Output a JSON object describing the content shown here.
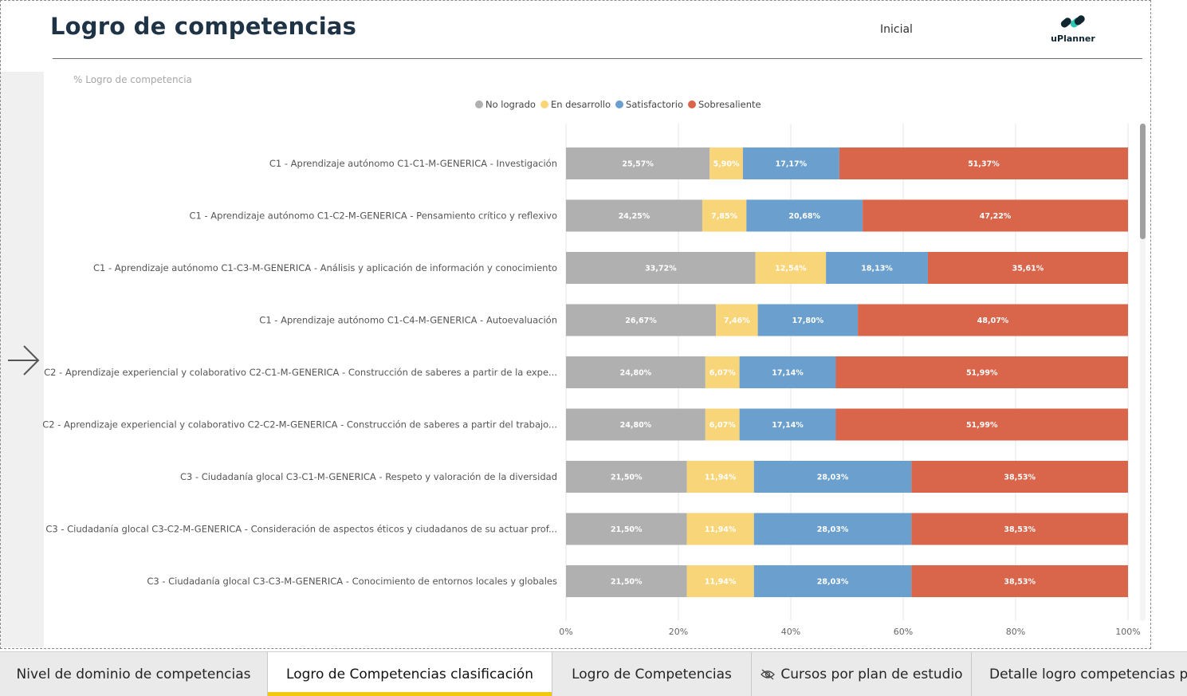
{
  "header": {
    "title": "Logro de competencias",
    "home_button": "Inicial",
    "logo_text": "uPlanner"
  },
  "colors": {
    "no_logrado": "#b0b0b0",
    "en_desarrollo": "#f9d57a",
    "satisfactorio": "#6a9fce",
    "sobresaliente": "#d9654b",
    "tab_underline": "#f2c811"
  },
  "chart_data": {
    "type": "bar",
    "orientation": "horizontal",
    "stacked": "100%",
    "title": "% Logro de competencia",
    "legend_position": "top-center",
    "categories": [
      "C1 - Aprendizaje autónomo C1-C1-M-GENERICA - Investigación",
      "C1 - Aprendizaje autónomo C1-C2-M-GENERICA - Pensamiento crítico y reflexivo",
      "C1 - Aprendizaje autónomo C1-C3-M-GENERICA - Análisis y aplicación de información y conocimiento",
      "C1 - Aprendizaje autónomo C1-C4-M-GENERICA - Autoevaluación",
      "C2 - Aprendizaje experiencial y colaborativo C2-C1-M-GENERICA - Construcción de saberes a partir de la expe...",
      "C2 - Aprendizaje experiencial y colaborativo C2-C2-M-GENERICA - Construcción de saberes a partir del trabajo...",
      "C3 - Ciudadanía glocal C3-C1-M-GENERICA - Respeto y valoración de la diversidad",
      "C3 - Ciudadanía glocal C3-C2-M-GENERICA - Consideración de aspectos éticos y ciudadanos de su actuar prof...",
      "C3 - Ciudadanía glocal C3-C3-M-GENERICA - Conocimiento de entornos locales y globales"
    ],
    "series": [
      {
        "name": "No logrado",
        "color": "#b0b0b0",
        "values": [
          25.57,
          24.25,
          33.72,
          26.67,
          24.8,
          24.8,
          21.5,
          21.5,
          21.5
        ],
        "labels": [
          "25,57%",
          "24,25%",
          "33,72%",
          "26,67%",
          "24,80%",
          "24,80%",
          "21,50%",
          "21,50%",
          "21,50%"
        ]
      },
      {
        "name": "En desarrollo",
        "color": "#f9d57a",
        "values": [
          5.9,
          7.85,
          12.54,
          7.46,
          6.07,
          6.07,
          11.94,
          11.94,
          11.94
        ],
        "labels": [
          "5,90%",
          "7,85%",
          "12,54%",
          "7,46%",
          "6,07%",
          "6,07%",
          "11,94%",
          "11,94%",
          "11,94%"
        ]
      },
      {
        "name": "Satisfactorio",
        "color": "#6a9fce",
        "values": [
          17.17,
          20.68,
          18.13,
          17.8,
          17.14,
          17.14,
          28.03,
          28.03,
          28.03
        ],
        "labels": [
          "17,17%",
          "20,68%",
          "18,13%",
          "17,80%",
          "17,14%",
          "17,14%",
          "28,03%",
          "28,03%",
          "28,03%"
        ]
      },
      {
        "name": "Sobresaliente",
        "color": "#d9654b",
        "values": [
          51.37,
          47.22,
          35.61,
          48.07,
          51.99,
          51.99,
          38.53,
          38.53,
          38.53
        ],
        "labels": [
          "51,37%",
          "47,22%",
          "35,61%",
          "48,07%",
          "51,99%",
          "51,99%",
          "38,53%",
          "38,53%",
          "38,53%"
        ]
      }
    ],
    "xlim": [
      0,
      100
    ],
    "x_ticks": [
      "0%",
      "20%",
      "40%",
      "60%",
      "80%",
      "100%"
    ],
    "grid": true
  },
  "tabs": [
    {
      "label": "Nivel de dominio de competencias",
      "active": false,
      "hidden": false
    },
    {
      "label": "Logro de Competencias clasificación",
      "active": true,
      "hidden": false
    },
    {
      "label": "Logro de Competencias",
      "active": false,
      "hidden": false
    },
    {
      "label": "Cursos por plan de estudio",
      "active": false,
      "hidden": true
    },
    {
      "label": "Detalle logro competencias p",
      "active": false,
      "hidden": true
    }
  ]
}
